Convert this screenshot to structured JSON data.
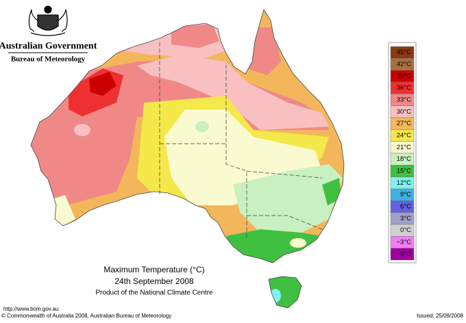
{
  "header": {
    "title": "Australian Government",
    "subtitle": "Bureau of Meteorology"
  },
  "legend": [
    {
      "label": "45°C",
      "color": "#8b3a12"
    },
    {
      "label": "42°C",
      "color": "#a87040"
    },
    {
      "label": "39°C",
      "color": "#cc0000"
    },
    {
      "label": "36°C",
      "color": "#ee3030"
    },
    {
      "label": "33°C",
      "color": "#f08888"
    },
    {
      "label": "30°C",
      "color": "#f8c0c0"
    },
    {
      "label": "27°C",
      "color": "#f4b65a"
    },
    {
      "label": "24°C",
      "color": "#f4e84a"
    },
    {
      "label": "21°C",
      "color": "#fafad0"
    },
    {
      "label": "18°C",
      "color": "#c8f0c0"
    },
    {
      "label": "15°C",
      "color": "#40c040"
    },
    {
      "label": "12°C",
      "color": "#80f0f0"
    },
    {
      "label": "9°C",
      "color": "#40b0e0"
    },
    {
      "label": "6°C",
      "color": "#6060e0"
    },
    {
      "label": "3°C",
      "color": "#a0a0c8"
    },
    {
      "label": "0°C",
      "color": "#d0d0d0"
    },
    {
      "label": "−3°C",
      "color": "#f080f0"
    },
    {
      "label": "−6°C",
      "color": "#a000a0"
    }
  ],
  "caption": {
    "title": "Maximum Temperature (°C)",
    "date": "24th September 2008",
    "product": "Product of the National Climate Centre"
  },
  "footer": {
    "url": "http://www.bom.gov.au",
    "copyright": "© Commonwealth of Australia 2008, Australian Bureau of Meteorology",
    "issued": "Issued: 25/09/2008"
  }
}
